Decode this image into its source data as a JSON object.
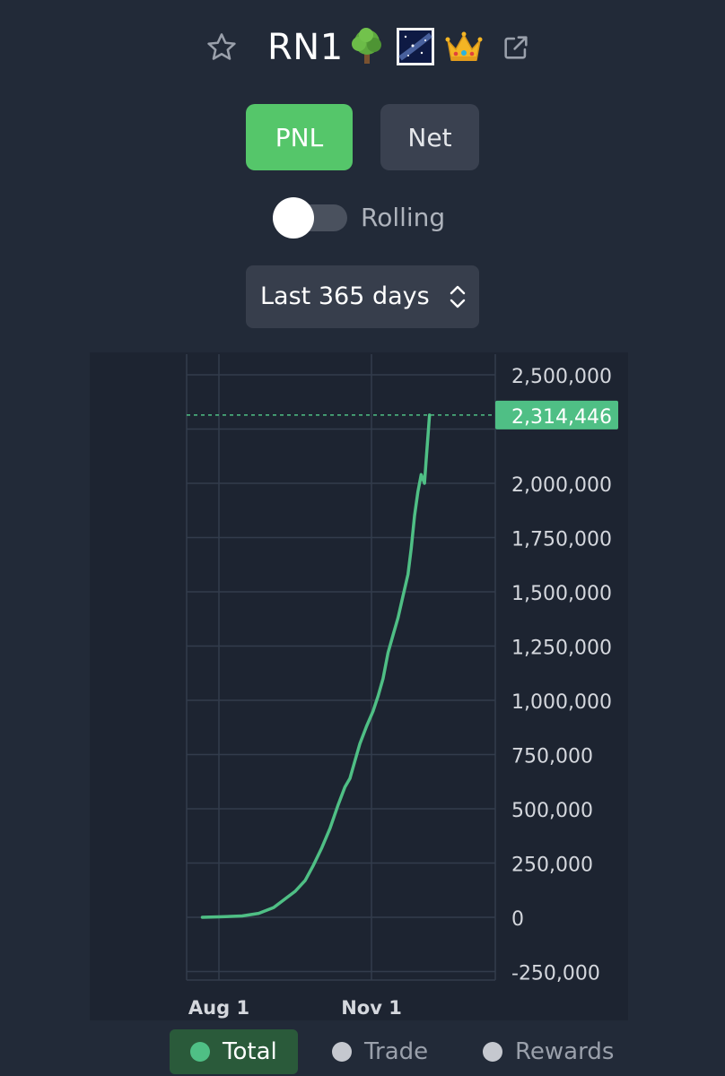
{
  "header": {
    "title": "RN1",
    "icons": [
      "star-icon",
      "tree-icon",
      "galaxy-icon",
      "crown-icon",
      "external-link-icon"
    ]
  },
  "tabs": [
    {
      "label": "PNL",
      "active": true
    },
    {
      "label": "Net",
      "active": false
    }
  ],
  "rolling": {
    "label": "Rolling",
    "enabled": false
  },
  "range": {
    "selected": "Last 365 days"
  },
  "colors": {
    "accent": "#55c66a",
    "line": "#4fbf85",
    "background": "#222a38"
  },
  "chart_data": {
    "type": "line",
    "title": "",
    "xlabel": "",
    "ylabel": "",
    "x_tick_labels": [
      "Aug 1",
      "Nov 1"
    ],
    "y_ticks": [
      2500000,
      2250000,
      2000000,
      1750000,
      1500000,
      1250000,
      1000000,
      750000,
      500000,
      250000,
      0,
      -250000
    ],
    "y_tick_labels": [
      "2,500,000",
      "",
      "2,000,000",
      "1,750,000",
      "1,500,000",
      "1,250,000",
      "1,000,000",
      "750,000",
      "500,000",
      "250,000",
      "0",
      "-250,000"
    ],
    "ylim": [
      -250000,
      2500000
    ],
    "grid": true,
    "last_value": 2314446,
    "last_value_label": "2,314,446",
    "series": [
      {
        "name": "Total",
        "color": "#4fbf85",
        "points": [
          [
            "Jul 22",
            0
          ],
          [
            "Aug 1",
            2000
          ],
          [
            "Aug 15",
            6000
          ],
          [
            "Aug 25",
            18000
          ],
          [
            "Sep 3",
            45000
          ],
          [
            "Sep 10",
            85000
          ],
          [
            "Sep 16",
            120000
          ],
          [
            "Sep 22",
            170000
          ],
          [
            "Sep 27",
            240000
          ],
          [
            "Oct 2",
            320000
          ],
          [
            "Oct 7",
            410000
          ],
          [
            "Oct 12",
            520000
          ],
          [
            "Oct 16",
            600000
          ],
          [
            "Oct 19",
            640000
          ],
          [
            "Oct 22",
            720000
          ],
          [
            "Oct 25",
            800000
          ],
          [
            "Oct 29",
            880000
          ],
          [
            "Nov 2",
            950000
          ],
          [
            "Nov 5",
            1020000
          ],
          [
            "Nov 8",
            1100000
          ],
          [
            "Nov 11",
            1220000
          ],
          [
            "Nov 14",
            1300000
          ],
          [
            "Nov 17",
            1380000
          ],
          [
            "Nov 20",
            1480000
          ],
          [
            "Nov 23",
            1580000
          ],
          [
            "Nov 25",
            1700000
          ],
          [
            "Nov 27",
            1850000
          ],
          [
            "Nov 29",
            1960000
          ],
          [
            "Dec 1",
            2040000
          ],
          [
            "Dec 3",
            2000000
          ],
          [
            "Dec 4",
            2110000
          ],
          [
            "Dec 6",
            2314446
          ]
        ]
      }
    ]
  },
  "legend": [
    {
      "label": "Total",
      "color": "#4fbf85",
      "active": true
    },
    {
      "label": "Trade",
      "color": "#c5c8cf",
      "active": false
    },
    {
      "label": "Rewards",
      "color": "#c5c8cf",
      "active": false
    }
  ]
}
